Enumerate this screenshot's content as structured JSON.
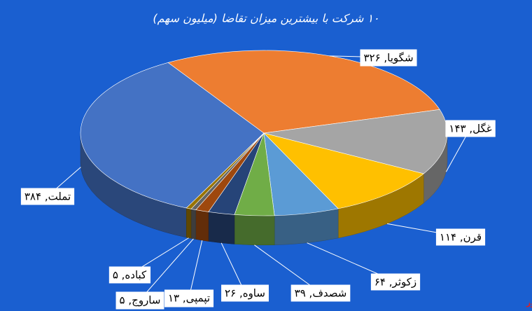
{
  "chart_data": {
    "type": "pie",
    "title": "۱۰ شرکت با بیشترین میزان تقاضا (میلیون سهم)",
    "values": [
      384,
      326,
      143,
      114,
      64,
      39,
      26,
      13,
      5,
      5
    ],
    "value_labels": [
      "تملت, ۳۸۴",
      "شگویا, ۳۲۶",
      "غگل, ۱۴۳",
      "قرن, ۱۱۴",
      "زکوثر, ۶۴",
      "شصدف, ۳۹",
      "ساوه, ۲۶",
      "تپمپی, ۱۳",
      "ساروج, ۵",
      "کباده, ۵"
    ],
    "colors": [
      "#4472c4",
      "#ed7d31",
      "#a5a5a5",
      "#ffc000",
      "#5b9bd5",
      "#70ad47",
      "#264478",
      "#9e480e",
      "#636363",
      "#997300"
    ]
  },
  "watermark": "بورس نیوز"
}
